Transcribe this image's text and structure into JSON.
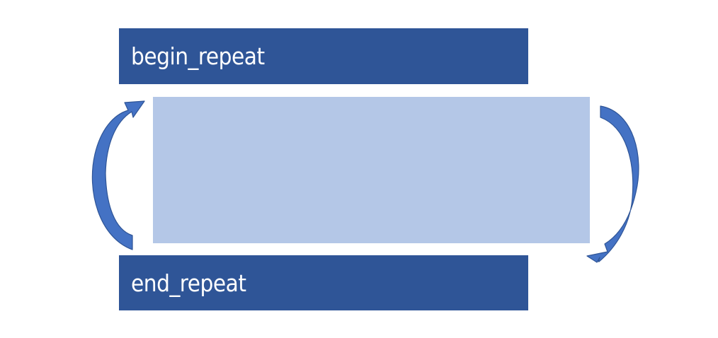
{
  "diagram": {
    "begin_label": "begin_repeat",
    "end_label": "end_repeat",
    "colors": {
      "block_dark": "#2f5597",
      "block_light": "#b4c7e7",
      "arrow_fill": "#4472c4",
      "arrow_stroke": "#2f5597",
      "label_text": "#ffffff"
    },
    "icons": {
      "left_arrow": "curved-arrow-up-icon",
      "right_arrow": "curved-arrow-down-icon"
    }
  }
}
